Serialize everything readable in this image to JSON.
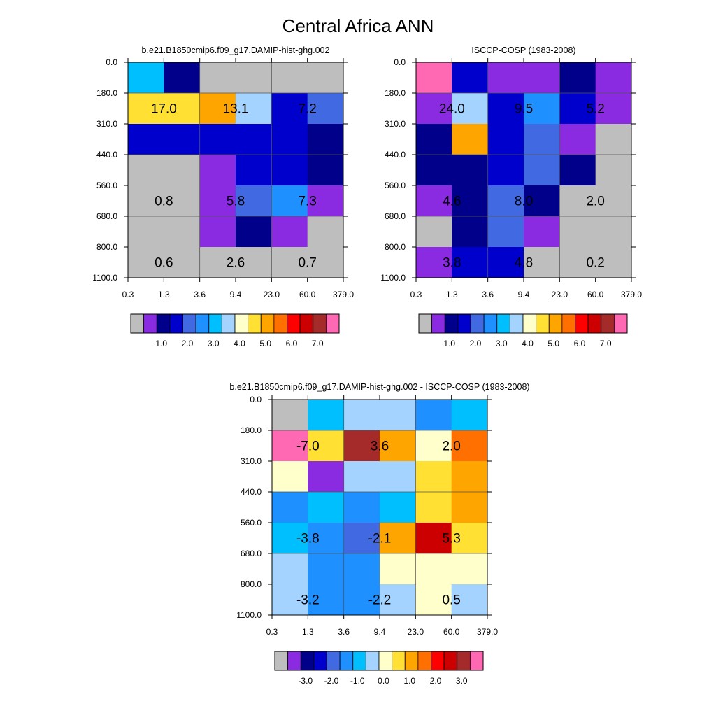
{
  "title": "Central Africa ANN",
  "palettes": {
    "abs": [
      "#BEBEBE",
      "#8A2BE2",
      "#00008B",
      "#0000CD",
      "#4169E1",
      "#1E90FF",
      "#00BFFF",
      "#A4D3FF",
      "#FFFFCC",
      "#FFE033",
      "#FFA500",
      "#FF7000",
      "#FF0000",
      "#CC0000",
      "#A52A2A",
      "#FF69B4"
    ],
    "diff": [
      "#BEBEBE",
      "#8A2BE2",
      "#00008B",
      "#0000CD",
      "#4169E1",
      "#1E90FF",
      "#00BFFF",
      "#A4D3FF",
      "#FFFFCC",
      "#FFE033",
      "#FFA500",
      "#FF7000",
      "#FF0000",
      "#CC0000",
      "#A52A2A",
      "#FF69B4"
    ]
  },
  "chart_data": [
    {
      "type": "heatmap",
      "title": "b.e21.B1850cmip6.f09_g17.DAMIP-hist-ghg.002",
      "x_tick_labels": [
        "0.3",
        "1.3",
        "3.6",
        "9.4",
        "23.0",
        "60.0",
        "379.0"
      ],
      "y_tick_labels": [
        "0.0",
        "180.0",
        "310.0",
        "440.0",
        "560.0",
        "680.0",
        "800.0",
        "1100.0"
      ],
      "grid": [
        [
          6,
          2,
          0,
          0,
          0,
          0
        ],
        [
          9,
          9,
          10,
          7,
          3,
          4
        ],
        [
          3,
          3,
          3,
          3,
          3,
          2
        ],
        [
          0,
          0,
          1,
          3,
          3,
          2
        ],
        [
          0,
          0,
          1,
          4,
          5,
          1
        ],
        [
          0,
          0,
          1,
          2,
          1,
          0
        ],
        [
          0,
          0,
          0,
          0,
          0,
          0
        ]
      ],
      "annotations": [
        {
          "row": 1,
          "col_pair": 0,
          "text": "17.0"
        },
        {
          "row": 1,
          "col_pair": 1,
          "text": "13.1"
        },
        {
          "row": 1,
          "col_pair": 2,
          "text": "7.2"
        },
        {
          "row": 4,
          "col_pair": 0,
          "text": "0.8"
        },
        {
          "row": 4,
          "col_pair": 1,
          "text": "5.8"
        },
        {
          "row": 4,
          "col_pair": 2,
          "text": "7.3"
        },
        {
          "row": 6,
          "col_pair": 0,
          "text": "0.6"
        },
        {
          "row": 6,
          "col_pair": 1,
          "text": "2.6"
        },
        {
          "row": 6,
          "col_pair": 2,
          "text": "0.7"
        }
      ],
      "colorbar": {
        "palette": "abs",
        "labels": [
          "1.0",
          "2.0",
          "3.0",
          "4.0",
          "5.0",
          "6.0",
          "7.0"
        ]
      }
    },
    {
      "type": "heatmap",
      "title": "ISCCP-COSP (1983-2008)",
      "x_tick_labels": [
        "0.3",
        "1.3",
        "3.6",
        "9.4",
        "23.0",
        "60.0",
        "379.0"
      ],
      "y_tick_labels": [
        "0.0",
        "180.0",
        "310.0",
        "440.0",
        "560.0",
        "680.0",
        "800.0",
        "1100.0"
      ],
      "grid": [
        [
          15,
          3,
          1,
          1,
          2,
          1
        ],
        [
          1,
          7,
          3,
          5,
          3,
          1
        ],
        [
          2,
          10,
          3,
          4,
          1,
          0
        ],
        [
          2,
          2,
          3,
          4,
          2,
          0
        ],
        [
          1,
          2,
          4,
          2,
          0,
          0
        ],
        [
          0,
          2,
          4,
          1,
          0,
          0
        ],
        [
          1,
          3,
          3,
          0,
          0,
          0
        ]
      ],
      "annotations": [
        {
          "row": 1,
          "col_pair": 0,
          "text": "24.0"
        },
        {
          "row": 1,
          "col_pair": 1,
          "text": "9.5"
        },
        {
          "row": 1,
          "col_pair": 2,
          "text": "5.2"
        },
        {
          "row": 4,
          "col_pair": 0,
          "text": "4.6"
        },
        {
          "row": 4,
          "col_pair": 1,
          "text": "8.0"
        },
        {
          "row": 4,
          "col_pair": 2,
          "text": "2.0"
        },
        {
          "row": 6,
          "col_pair": 0,
          "text": "3.8"
        },
        {
          "row": 6,
          "col_pair": 1,
          "text": "4.8"
        },
        {
          "row": 6,
          "col_pair": 2,
          "text": "0.2"
        }
      ],
      "colorbar": {
        "palette": "abs",
        "labels": [
          "1.0",
          "2.0",
          "3.0",
          "4.0",
          "5.0",
          "6.0",
          "7.0"
        ]
      }
    },
    {
      "type": "heatmap",
      "title": "b.e21.B1850cmip6.f09_g17.DAMIP-hist-ghg.002 - ISCCP-COSP (1983-2008)",
      "x_tick_labels": [
        "0.3",
        "1.3",
        "3.6",
        "9.4",
        "23.0",
        "60.0",
        "379.0"
      ],
      "y_tick_labels": [
        "0.0",
        "180.0",
        "310.0",
        "440.0",
        "560.0",
        "680.0",
        "800.0",
        "1100.0"
      ],
      "grid": [
        [
          0,
          6,
          7,
          7,
          5,
          6
        ],
        [
          15,
          9,
          14,
          10,
          8,
          11
        ],
        [
          8,
          1,
          7,
          7,
          9,
          10
        ],
        [
          5,
          6,
          5,
          6,
          9,
          10
        ],
        [
          6,
          5,
          4,
          10,
          13,
          9
        ],
        [
          7,
          5,
          5,
          8,
          8,
          8
        ],
        [
          7,
          5,
          5,
          7,
          8,
          7
        ]
      ],
      "annotations": [
        {
          "row": 1,
          "col_pair": 0,
          "text": "-7.0"
        },
        {
          "row": 1,
          "col_pair": 1,
          "text": "3.6"
        },
        {
          "row": 1,
          "col_pair": 2,
          "text": "2.0"
        },
        {
          "row": 4,
          "col_pair": 0,
          "text": "-3.8"
        },
        {
          "row": 4,
          "col_pair": 1,
          "text": "-2.1"
        },
        {
          "row": 4,
          "col_pair": 2,
          "text": "5.3"
        },
        {
          "row": 6,
          "col_pair": 0,
          "text": "-3.2"
        },
        {
          "row": 6,
          "col_pair": 1,
          "text": "-2.2"
        },
        {
          "row": 6,
          "col_pair": 2,
          "text": "0.5"
        }
      ],
      "colorbar": {
        "palette": "diff",
        "labels": [
          "-3.0",
          "-2.0",
          "-1.0",
          "0.0",
          "1.0",
          "2.0",
          "3.0"
        ]
      }
    }
  ]
}
